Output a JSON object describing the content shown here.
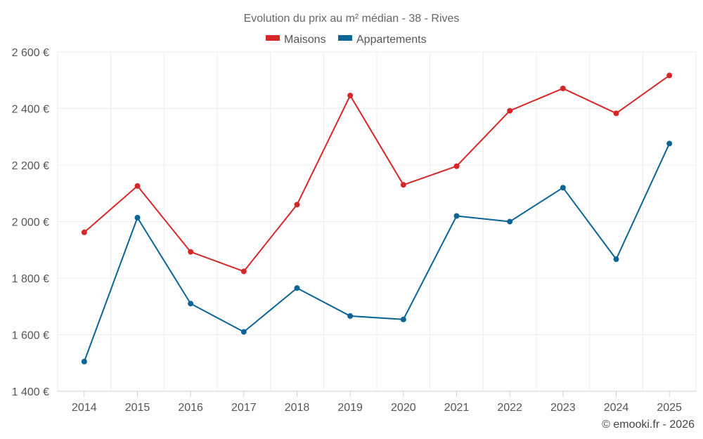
{
  "chart_data": {
    "type": "line",
    "title": "Evolution du prix au m² médian - 38 - Rives",
    "categories": [
      "2014",
      "2015",
      "2016",
      "2017",
      "2018",
      "2019",
      "2020",
      "2021",
      "2022",
      "2023",
      "2024",
      "2025"
    ],
    "series": [
      {
        "name": "Maisons",
        "color": "#d62728",
        "values": [
          1962,
          2126,
          1893,
          1824,
          2060,
          2446,
          2130,
          2196,
          2392,
          2471,
          2383,
          2517
        ]
      },
      {
        "name": "Appartements",
        "color": "#0a6496",
        "values": [
          1505,
          2014,
          1710,
          1610,
          1765,
          1666,
          1654,
          2020,
          2000,
          2120,
          1867,
          2276
        ]
      }
    ],
    "yticks": [
      "1 400 €",
      "1 600 €",
      "1 800 €",
      "2 000 €",
      "2 200 €",
      "2 400 €",
      "2 600 €"
    ],
    "ylim": [
      1400,
      2600
    ],
    "xlabel": "",
    "ylabel": "",
    "legend_position": "top-center",
    "grid": true
  },
  "credit": "© emooki.fr - 2026"
}
